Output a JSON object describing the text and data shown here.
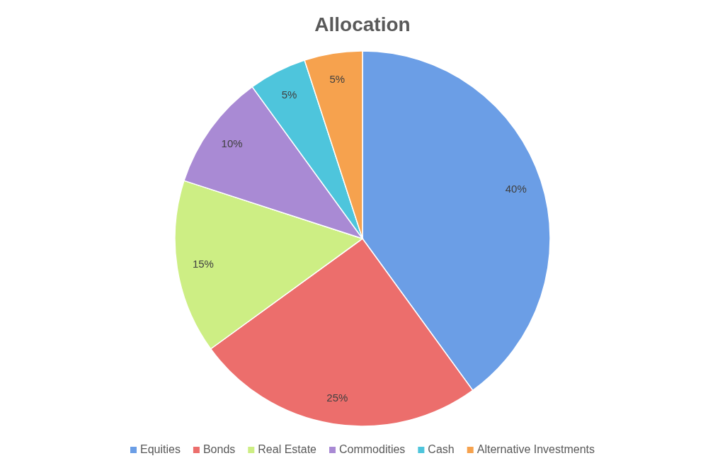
{
  "chart_data": {
    "type": "pie",
    "title": "Allocation",
    "categories": [
      "Equities",
      "Bonds",
      "Real Estate",
      "Commodities",
      "Cash",
      "Alternative Investments"
    ],
    "values": [
      40,
      25,
      15,
      10,
      5,
      5
    ],
    "colors": [
      "#6b9ee6",
      "#ec6e6c",
      "#cdee84",
      "#a98ad4",
      "#4ec5dc",
      "#f6a24e"
    ],
    "value_labels": [
      "40%",
      "25%",
      "15%",
      "10%",
      "5%",
      "5%"
    ],
    "legend": "bottom"
  }
}
